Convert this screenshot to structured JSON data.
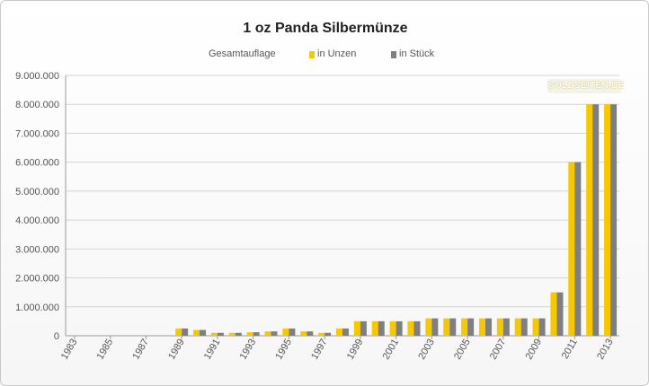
{
  "chart_data": {
    "type": "bar",
    "title": "1 oz Panda Silbermünze",
    "legend_title": "Gesamtauflage",
    "legend_position": "top",
    "categories": [
      "1983",
      "1984",
      "1985",
      "1986",
      "1987",
      "1988",
      "1989",
      "1990",
      "1991",
      "1992",
      "1993",
      "1994",
      "1995",
      "1996",
      "1997",
      "1998",
      "1999",
      "2000",
      "2001",
      "2002",
      "2003",
      "2004",
      "2005",
      "2006",
      "2007",
      "2008",
      "2009",
      "2010",
      "2011",
      "2012",
      "2013"
    ],
    "x_tick_labels": [
      "1983",
      "1985",
      "1987",
      "1989",
      "1991",
      "1993",
      "1995",
      "1997",
      "1999",
      "2001",
      "2003",
      "2005",
      "2007",
      "2009",
      "2011",
      "2013"
    ],
    "series": [
      {
        "name": "in Unzen",
        "color": "#f7c800",
        "values": [
          0,
          0,
          0,
          0,
          0,
          0,
          250000,
          200000,
          100000,
          100000,
          120000,
          150000,
          250000,
          150000,
          100000,
          250000,
          500000,
          500000,
          500000,
          500000,
          600000,
          600000,
          600000,
          600000,
          600000,
          600000,
          600000,
          1500000,
          6000000,
          8000000,
          8000000
        ]
      },
      {
        "name": "in Stück",
        "color": "#7f7f7f",
        "values": [
          0,
          0,
          0,
          0,
          0,
          0,
          250000,
          200000,
          100000,
          100000,
          120000,
          150000,
          250000,
          150000,
          100000,
          250000,
          500000,
          500000,
          500000,
          500000,
          600000,
          600000,
          600000,
          600000,
          600000,
          600000,
          600000,
          1500000,
          6000000,
          8000000,
          8000000
        ]
      }
    ],
    "y_tick_labels": [
      "0",
      "1.000.000",
      "2.000.000",
      "3.000.000",
      "4.000.000",
      "5.000.000",
      "6.000.000",
      "7.000.000",
      "8.000.000",
      "9.000.000"
    ],
    "ylim": [
      0,
      9000000
    ],
    "grid": true
  },
  "watermark": "GOLDSEITEN.DE"
}
